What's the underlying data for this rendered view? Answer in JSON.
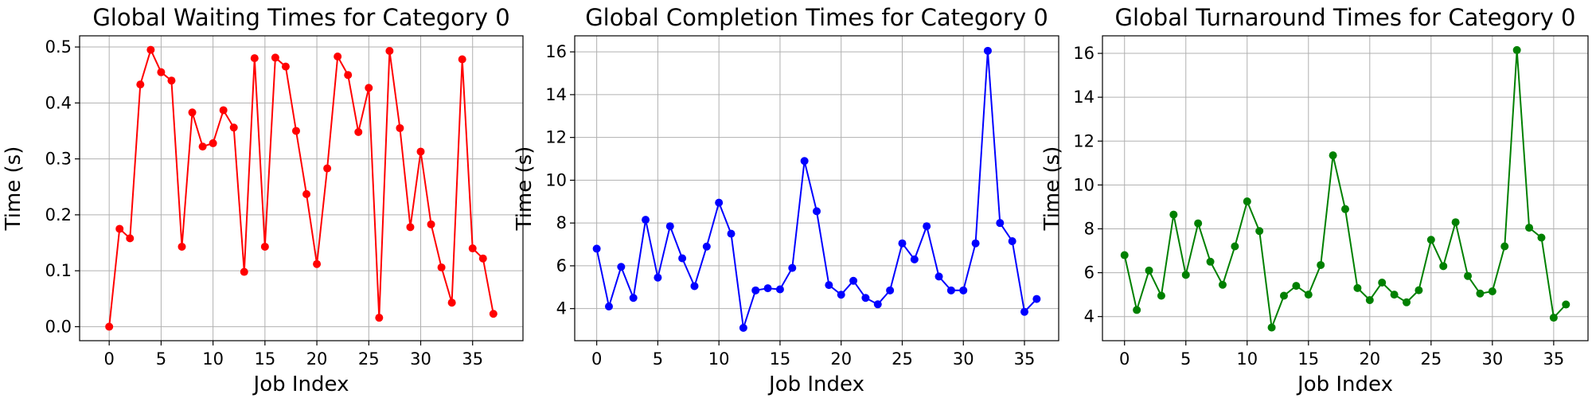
{
  "chart_data": [
    {
      "type": "line",
      "title": "Global Waiting Times for Category 0",
      "xlabel": "Job Index",
      "ylabel": "Time (s)",
      "color": "#ff0000",
      "xlim": [
        -2.85,
        39.85
      ],
      "ylim": [
        -0.025,
        0.52
      ],
      "xticks": [
        0,
        5,
        10,
        15,
        20,
        25,
        30,
        35
      ],
      "yticks": [
        0.0,
        0.1,
        0.2,
        0.3,
        0.4,
        0.5
      ],
      "ytick_decimals": 1,
      "grid": true,
      "x": [
        0,
        1,
        2,
        3,
        4,
        5,
        6,
        7,
        8,
        9,
        10,
        11,
        12,
        13,
        14,
        15,
        16,
        17,
        18,
        19,
        20,
        21,
        22,
        23,
        24,
        25,
        26,
        27,
        28,
        29,
        30,
        31,
        32,
        33,
        34,
        35,
        36,
        37
      ],
      "y": [
        0.0,
        0.175,
        0.158,
        0.433,
        0.495,
        0.455,
        0.44,
        0.143,
        0.383,
        0.322,
        0.328,
        0.387,
        0.356,
        0.098,
        0.48,
        0.143,
        0.481,
        0.465,
        0.35,
        0.237,
        0.112,
        0.283,
        0.483,
        0.45,
        0.348,
        0.427,
        0.016,
        0.493,
        0.355,
        0.178,
        0.313,
        0.183,
        0.106,
        0.043,
        0.478,
        0.14,
        0.122,
        0.023
      ]
    },
    {
      "type": "line",
      "title": "Global Completion Times for Category 0",
      "xlabel": "Job Index",
      "ylabel": "Time (s)",
      "color": "#0000ff",
      "xlim": [
        -1.8,
        37.8
      ],
      "ylim": [
        2.5,
        16.75
      ],
      "xticks": [
        0,
        5,
        10,
        15,
        20,
        25,
        30,
        35
      ],
      "yticks": [
        4,
        6,
        8,
        10,
        12,
        14,
        16
      ],
      "ytick_decimals": 0,
      "grid": true,
      "x": [
        0,
        1,
        2,
        3,
        4,
        5,
        6,
        7,
        8,
        9,
        10,
        11,
        12,
        13,
        14,
        15,
        16,
        17,
        18,
        19,
        20,
        21,
        22,
        23,
        24,
        25,
        26,
        27,
        28,
        29,
        30,
        31,
        32,
        33,
        34,
        35,
        36
      ],
      "y": [
        6.8,
        4.1,
        5.95,
        4.5,
        8.15,
        5.45,
        7.85,
        6.35,
        5.05,
        6.9,
        8.95,
        7.5,
        3.1,
        4.85,
        4.95,
        4.9,
        5.9,
        10.9,
        8.55,
        5.1,
        4.65,
        5.3,
        4.5,
        4.2,
        4.85,
        7.05,
        6.3,
        7.85,
        5.5,
        4.85,
        4.85,
        7.05,
        16.05,
        8.0,
        7.15,
        3.85,
        4.45
      ]
    },
    {
      "type": "line",
      "title": "Global Turnaround Times for Category 0",
      "xlabel": "Job Index",
      "ylabel": "Time (s)",
      "color": "#008000",
      "xlim": [
        -1.8,
        37.8
      ],
      "ylim": [
        2.9,
        16.8
      ],
      "xticks": [
        0,
        5,
        10,
        15,
        20,
        25,
        30,
        35
      ],
      "yticks": [
        4,
        6,
        8,
        10,
        12,
        14,
        16
      ],
      "ytick_decimals": 0,
      "grid": true,
      "x": [
        0,
        1,
        2,
        3,
        4,
        5,
        6,
        7,
        8,
        9,
        10,
        11,
        12,
        13,
        14,
        15,
        16,
        17,
        18,
        19,
        20,
        21,
        22,
        23,
        24,
        25,
        26,
        27,
        28,
        29,
        30,
        31,
        32,
        33,
        34,
        35,
        36
      ],
      "y": [
        6.8,
        4.3,
        6.1,
        4.95,
        8.65,
        5.9,
        8.25,
        6.5,
        5.45,
        7.2,
        9.25,
        7.9,
        3.5,
        4.95,
        5.4,
        5.0,
        6.35,
        11.35,
        8.9,
        5.3,
        4.75,
        5.55,
        5.0,
        4.65,
        5.2,
        7.5,
        6.3,
        8.3,
        5.85,
        5.05,
        5.15,
        7.2,
        16.15,
        8.05,
        7.6,
        3.95,
        4.55
      ]
    }
  ]
}
